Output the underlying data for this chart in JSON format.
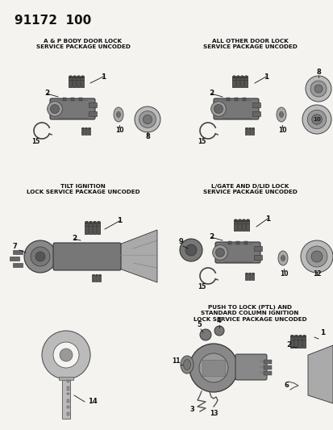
{
  "title": "91172  100",
  "bg_color": "#f5f3f0",
  "text_color": "#111111",
  "part_color": "#444444",
  "part_edge": "#222222",
  "light_part": "#888888",
  "section_titles": [
    "A & P BODY DOOR LOCK\nSERVICE PACKAGE UNCODED",
    "ALL OTHER DOOR LOCK\nSERVICE PACKAGE UNCODED",
    "TILT IGNITION\nLOCK SERVICE PACKAGE UNCODED",
    "L/GATE AND D/LID LOCK\nSERVICE PACKAGE UNCODED",
    "PUSH TO LOCK (PTL) AND\nSTANDARD COLUMN IGNITION\nLOCK SERVICE PACKAGE UNCODED"
  ],
  "figsize": [
    4.14,
    5.33
  ],
  "dpi": 100
}
